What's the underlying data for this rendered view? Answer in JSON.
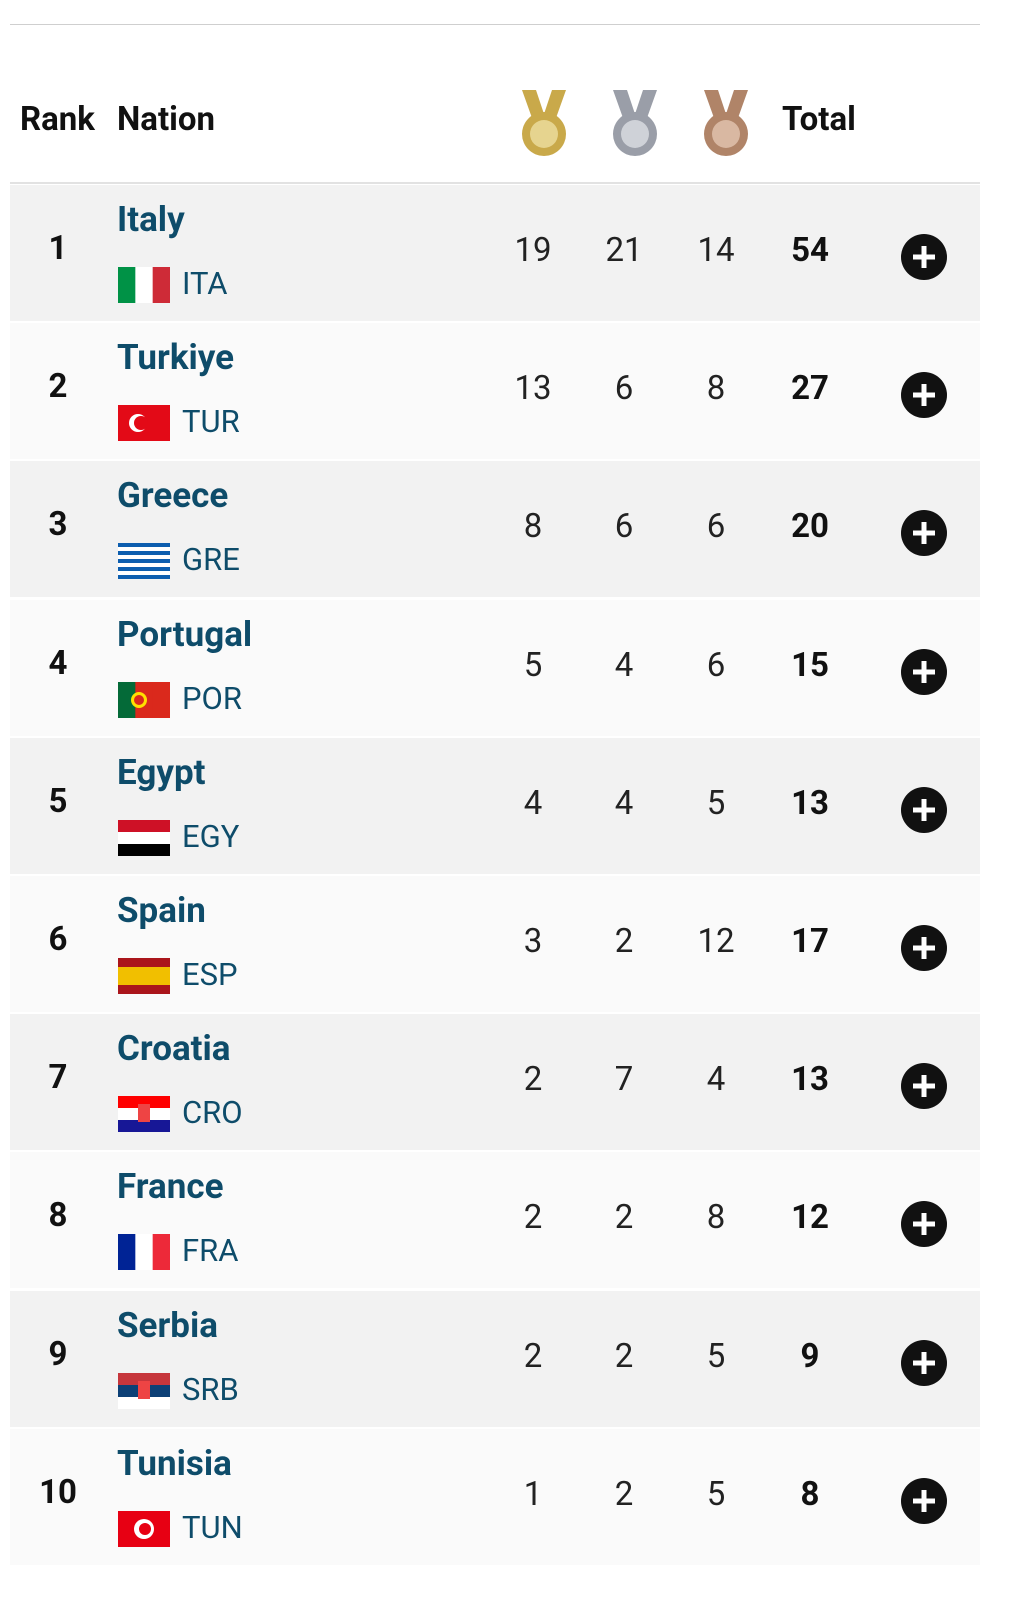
{
  "header": {
    "columns": [
      "Rank",
      "Nation",
      "Total"
    ]
  },
  "table": {
    "rows": [
      [
        "1",
        "Italy",
        "ITA",
        "19",
        "21",
        "14",
        "54"
      ],
      [
        "2",
        "Turkiye",
        "TUR",
        "13",
        "6",
        "8",
        "27"
      ],
      [
        "3",
        "Greece",
        "GRE",
        "8",
        "6",
        "6",
        "20"
      ],
      [
        "4",
        "Portugal",
        "POR",
        "5",
        "4",
        "6",
        "15"
      ],
      [
        "5",
        "Egypt",
        "EGY",
        "4",
        "4",
        "5",
        "13"
      ],
      [
        "6",
        "Spain",
        "ESP",
        "3",
        "2",
        "12",
        "17"
      ],
      [
        "7",
        "Croatia",
        "CRO",
        "2",
        "7",
        "4",
        "13"
      ],
      [
        "8",
        "France",
        "FRA",
        "2",
        "2",
        "8",
        "12"
      ],
      [
        "9",
        "Serbia",
        "SRB",
        "2",
        "2",
        "5",
        "9"
      ],
      [
        "10",
        "Tunisia",
        "TUN",
        "1",
        "2",
        "5",
        "8"
      ]
    ]
  }
}
